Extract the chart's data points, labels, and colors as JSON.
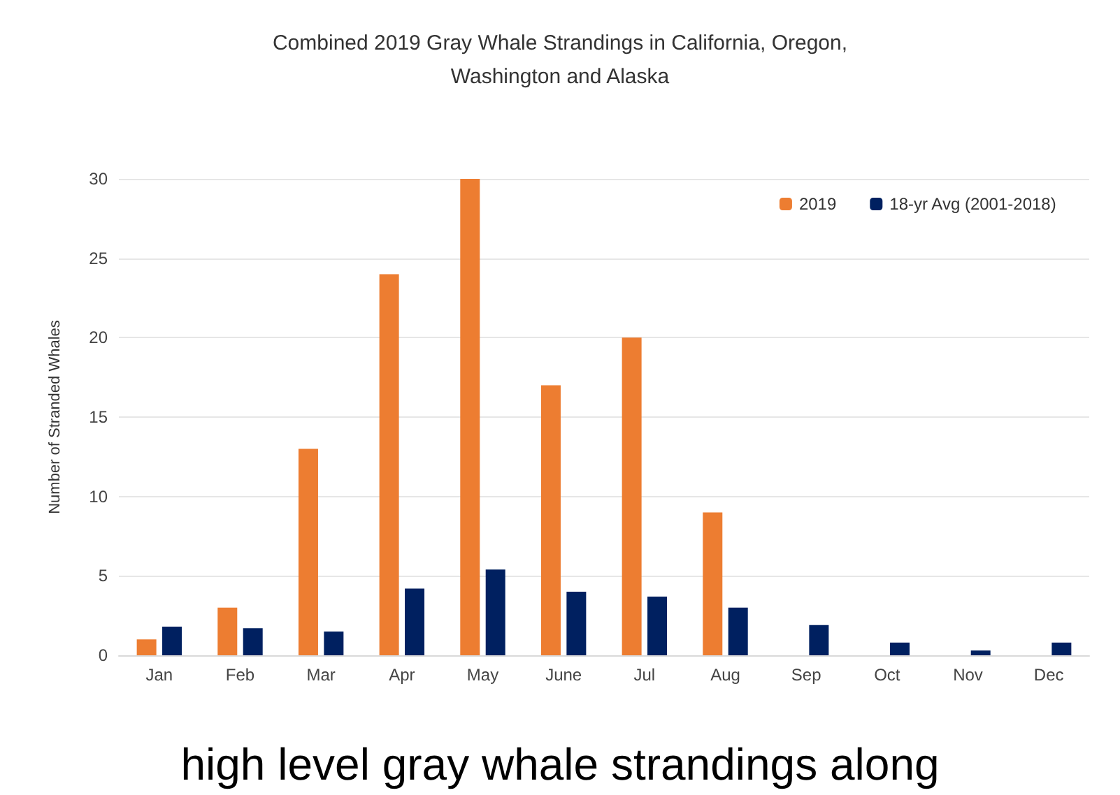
{
  "chart_data": {
    "type": "bar",
    "title": "Combined 2019 Gray Whale Strandings in California, Oregon,\nWashington and Alaska",
    "ylabel": "Number of Stranded Whales",
    "categories": [
      "Jan",
      "Feb",
      "Mar",
      "Apr",
      "May",
      "June",
      "Jul",
      "Aug",
      "Sep",
      "Oct",
      "Nov",
      "Dec"
    ],
    "series": [
      {
        "name": "2019",
        "color": "#ed7d31",
        "values": [
          1,
          3,
          13,
          24,
          30,
          17,
          20,
          9,
          null,
          null,
          null,
          null
        ]
      },
      {
        "name": "18-yr Avg (2001-2018)",
        "color": "#002060",
        "values": [
          1.8,
          1.7,
          1.5,
          4.2,
          5.4,
          4.0,
          3.7,
          3.0,
          1.9,
          0.8,
          0.3,
          0.8
        ]
      }
    ],
    "ylim": [
      0,
      30
    ],
    "yticks": [
      0,
      5,
      10,
      15,
      20,
      25,
      30
    ],
    "grid": "y",
    "legend": "top right",
    "annotations": [
      "high level gray whale strandings along"
    ]
  }
}
